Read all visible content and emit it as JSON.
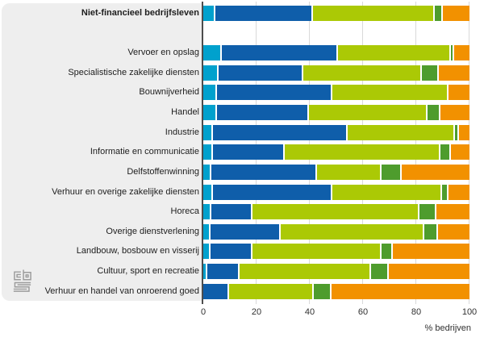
{
  "branding": {
    "logo": "cbs"
  },
  "axis": {
    "xlabel": "% bedrijven",
    "ticks": [
      0,
      20,
      40,
      60,
      80,
      100
    ]
  },
  "chart_data": {
    "type": "bar",
    "orientation": "horizontal",
    "stacked": true,
    "title": "",
    "xlabel": "% bedrijven",
    "xlim": [
      0,
      100
    ],
    "x_ticks": [
      0,
      20,
      40,
      60,
      80,
      100
    ],
    "grid": true,
    "legend": "none",
    "bold_category_index": 0,
    "gap_after_first_category": true,
    "categories": [
      "Niet-financieel bedrijfsleven",
      "Vervoer en opslag",
      "Specialistische zakelijke diensten",
      "Bouwnijverheid",
      "Handel",
      "Industrie",
      "Informatie en communicatie",
      "Delfstoffenwinning",
      "Verhuur en overige zakelijke diensten",
      "Horeca",
      "Overige dienstverlening",
      "Landbouw, bosbouw en visserij",
      "Cultuur, sport en recreatie",
      "Verhuur en handel van onroerend goed"
    ],
    "series": [
      {
        "name": "cyan-segment",
        "color": "#00a1cd",
        "values": [
          4,
          6.5,
          5,
          4.5,
          4.5,
          3,
          3,
          2.5,
          3,
          2.5,
          2,
          2,
          1,
          0
        ]
      },
      {
        "name": "blue-segment",
        "color": "#0f5eaa",
        "values": [
          36.5,
          43.5,
          32,
          43.5,
          34.5,
          50.5,
          27,
          39.5,
          45,
          15.5,
          26.5,
          16,
          12,
          9
        ]
      },
      {
        "name": "lime-green-segment",
        "color": "#abc905",
        "values": [
          46,
          42.5,
          44.5,
          43.5,
          44.5,
          40.5,
          58.5,
          24.5,
          41,
          62.5,
          54,
          48.5,
          49.5,
          32
        ]
      },
      {
        "name": "dark-green-segment",
        "color": "#4e9c2d",
        "values": [
          3,
          1,
          6.5,
          0,
          5,
          1.5,
          4,
          7.5,
          2.5,
          6.5,
          5,
          4,
          6.5,
          6.5
        ]
      },
      {
        "name": "orange-segment",
        "color": "#f29100",
        "values": [
          10.5,
          6.5,
          12,
          8.5,
          11.5,
          4.5,
          7.5,
          26,
          8.5,
          13,
          12.5,
          29.5,
          31,
          52.5
        ]
      }
    ]
  },
  "colors": {
    "panel_bg": "#eeeeee",
    "axis_line": "#4d4d4d",
    "gridline": "#d9d9d9",
    "label_text": "#1d1d1d",
    "axis_text": "#303030",
    "logo_gray": "#9c9c9c"
  }
}
